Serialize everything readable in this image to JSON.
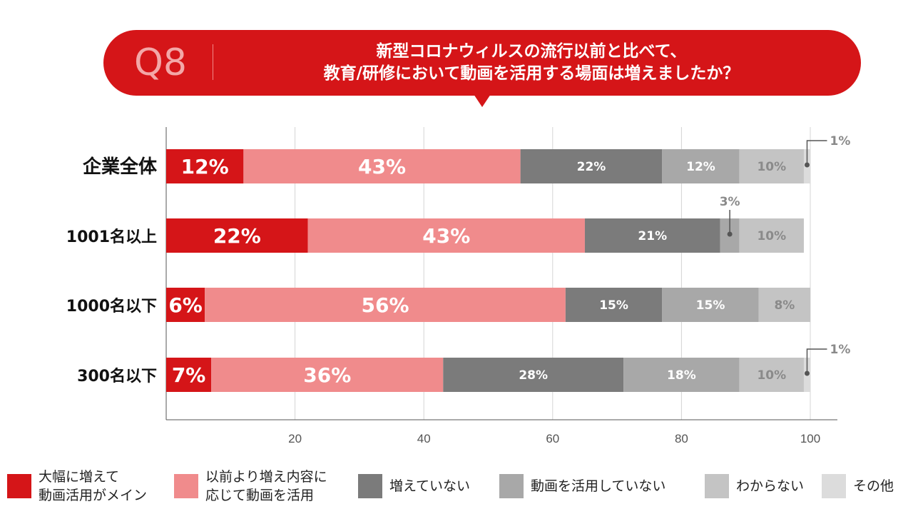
{
  "header": {
    "q_label": "Q8",
    "question_line1": "新型コロナウィルスの流行以前と比べて、",
    "question_line2": "教育/研修において動画を活用する場面は増えましたか？"
  },
  "chart_data": {
    "type": "bar",
    "orientation": "horizontal",
    "stacked": true,
    "categories": [
      "企業全体",
      "1001名以上",
      "1000名以下",
      "300名以下"
    ],
    "series": [
      {
        "name": "大幅に増えて\n動画活用がメイン",
        "color": "#d51518",
        "values": [
          12,
          22,
          6,
          7
        ],
        "labels": [
          "12%",
          "22%",
          "6%",
          "7%"
        ]
      },
      {
        "name": "以前より増え内容に\n応じて動画を活用",
        "color": "#f08b8c",
        "values": [
          43,
          43,
          56,
          36
        ],
        "labels": [
          "43%",
          "43%",
          "56%",
          "36%"
        ]
      },
      {
        "name": "増えていない",
        "color": "#7b7b7b",
        "values": [
          22,
          21,
          15,
          28
        ],
        "labels": [
          "22%",
          "21%",
          "15%",
          "28%"
        ]
      },
      {
        "name": "動画を活用していない",
        "color": "#a8a8a8",
        "values": [
          12,
          3,
          15,
          18
        ],
        "labels": [
          "12%",
          "3%",
          "15%",
          "18%"
        ]
      },
      {
        "name": "わからない",
        "color": "#c4c4c4",
        "values": [
          10,
          10,
          8,
          10
        ],
        "labels": [
          "10%",
          "10%",
          "8%",
          "10%"
        ]
      },
      {
        "name": "その他",
        "color": "#dcdcdc",
        "values": [
          1,
          0,
          0,
          1
        ],
        "labels": [
          "1%",
          "",
          "",
          "1%"
        ]
      }
    ],
    "xlim": [
      0,
      100
    ],
    "xticks": [
      "20",
      "40",
      "60",
      "80",
      "100"
    ],
    "xtick_values": [
      20,
      40,
      60,
      80,
      100
    ],
    "gridlines": true,
    "legend_position": "bottom",
    "callouts": [
      {
        "category": "企業全体",
        "series": "その他",
        "label": "1%"
      },
      {
        "category": "1001名以上",
        "series": "動画を活用していない",
        "label": "3%"
      },
      {
        "category": "300名以下",
        "series": "その他",
        "label": "1%"
      }
    ]
  }
}
